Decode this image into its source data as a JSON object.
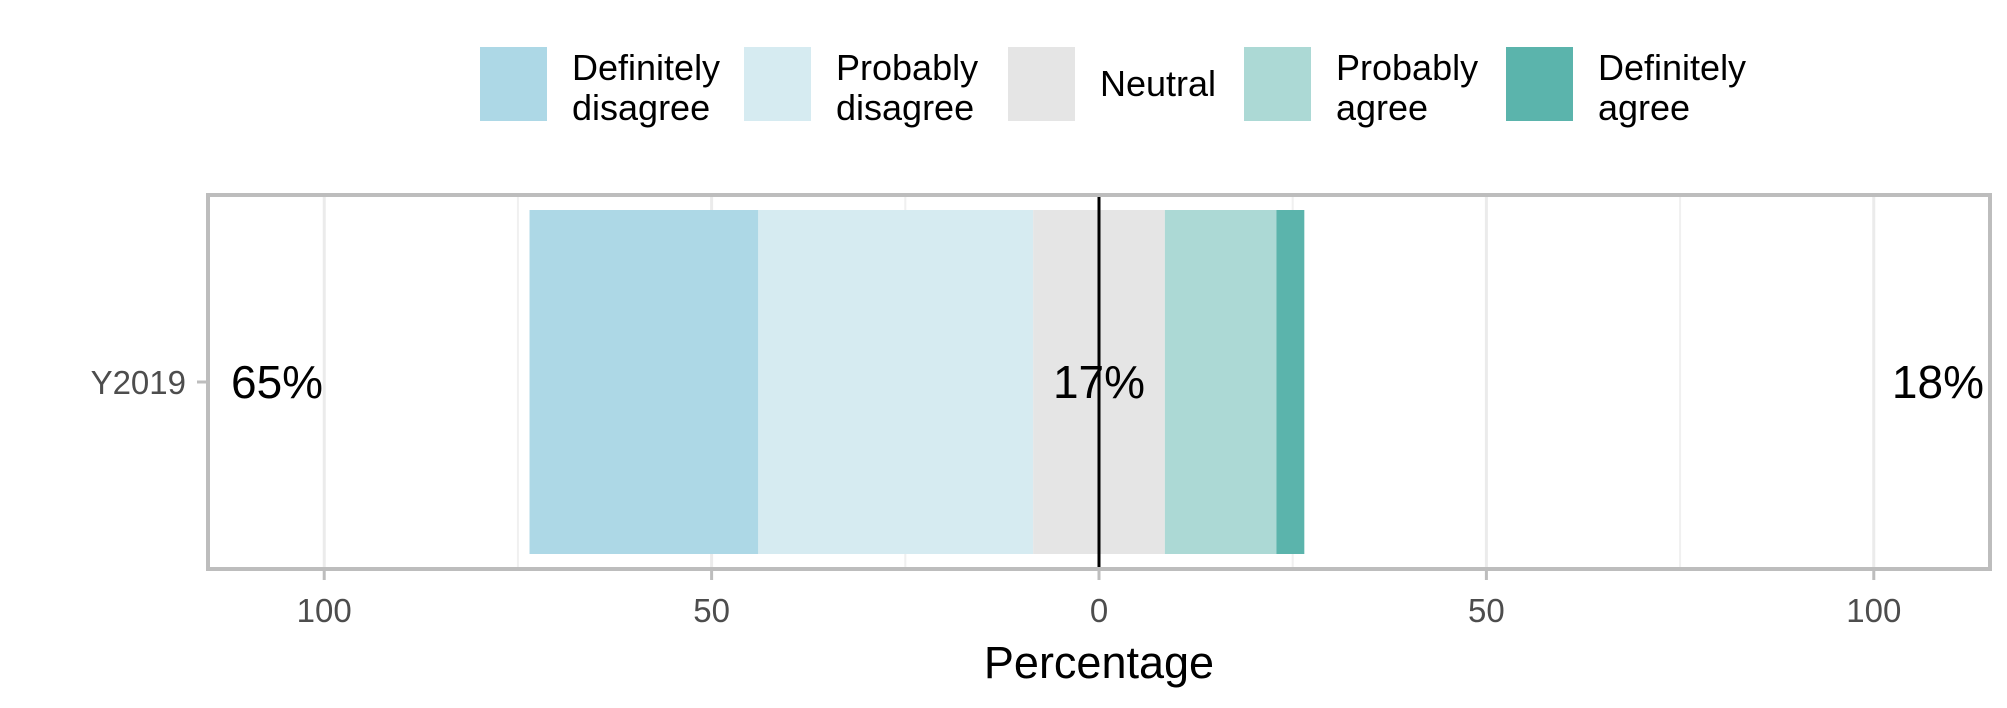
{
  "chart_data": {
    "type": "bar",
    "orientation": "horizontal",
    "stacked": "diverging",
    "xlabel": "Percentage",
    "ylabel": "",
    "xlim": [
      -115,
      115
    ],
    "x_ticks": [
      -100,
      -50,
      0,
      50,
      100
    ],
    "x_tick_labels": [
      "100",
      "50",
      "0",
      "50",
      "100"
    ],
    "categories": [
      "Y2019"
    ],
    "series": [
      {
        "name": "Definitely disagree",
        "label_lines": [
          "Definitely",
          "disagree"
        ],
        "color": "#add8e6",
        "values": [
          29.5
        ]
      },
      {
        "name": "Probably disagree",
        "label_lines": [
          "Probably",
          "disagree"
        ],
        "color": "#d6ebf1",
        "values": [
          35.5
        ]
      },
      {
        "name": "Neutral",
        "label_lines": [
          "Neutral"
        ],
        "color": "#e5e5e5",
        "values": [
          17
        ]
      },
      {
        "name": "Probably agree",
        "label_lines": [
          "Probably",
          "agree"
        ],
        "color": "#acd9d5",
        "values": [
          14.4
        ]
      },
      {
        "name": "Definitely agree",
        "label_lines": [
          "Definitely",
          "agree"
        ],
        "color": "#5bb4ac",
        "values": [
          3.6
        ]
      }
    ],
    "summary_labels": {
      "left": "65%",
      "center": "17%",
      "right": "18%"
    },
    "legend_position": "top",
    "grid": true
  }
}
